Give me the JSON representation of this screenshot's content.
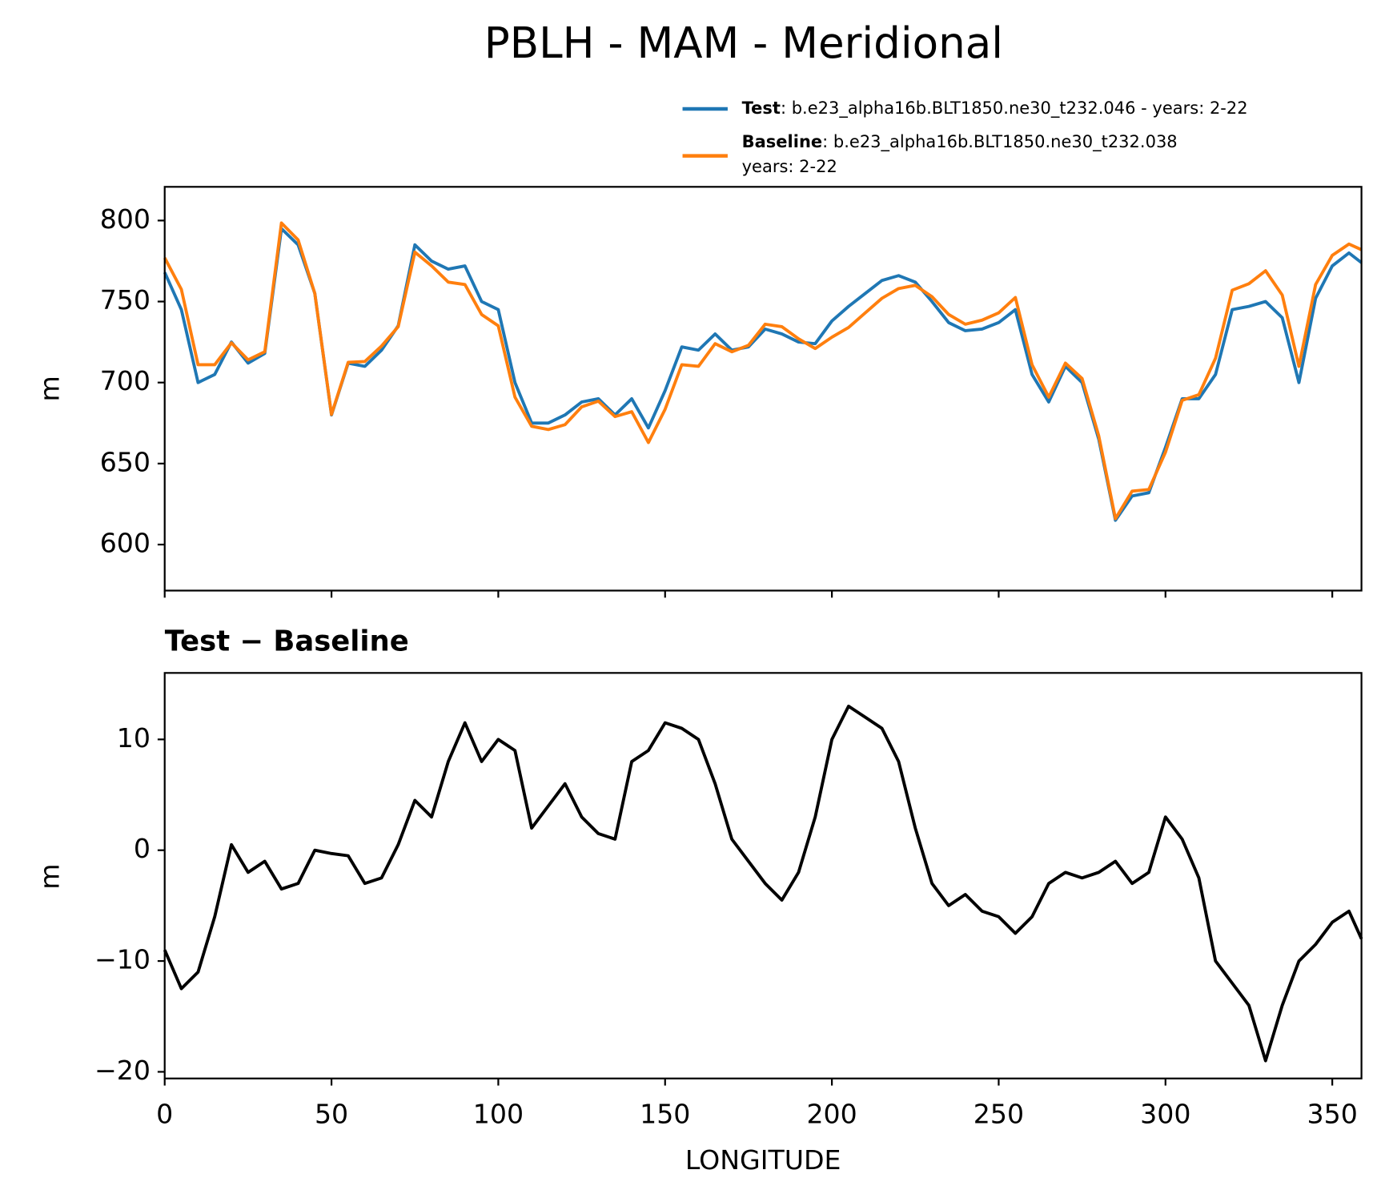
{
  "chart_data": [
    {
      "type": "line",
      "title": "PBLH - MAM - Meridional",
      "ylabel": "m",
      "x": [
        0,
        5,
        10,
        15,
        20,
        25,
        30,
        35,
        40,
        45,
        50,
        55,
        60,
        65,
        70,
        75,
        80,
        85,
        90,
        95,
        100,
        105,
        110,
        115,
        120,
        125,
        130,
        135,
        140,
        145,
        150,
        155,
        160,
        165,
        170,
        175,
        180,
        185,
        190,
        195,
        200,
        205,
        210,
        215,
        220,
        225,
        230,
        235,
        240,
        245,
        250,
        255,
        260,
        265,
        270,
        275,
        280,
        285,
        290,
        295,
        300,
        305,
        310,
        315,
        320,
        325,
        330,
        335,
        340,
        345,
        350,
        355,
        358.75
      ],
      "series": [
        {
          "name": "Test",
          "description": ": b.e23_alpha16b.BLT1850.ne30_t232.046 - years: 2-22",
          "color": "#1f77b4",
          "values": [
            768,
            745,
            700,
            705,
            725,
            712,
            718,
            795,
            785,
            755,
            680,
            712,
            710,
            720,
            735,
            785,
            775,
            770,
            772,
            750,
            745,
            700,
            675,
            675,
            680,
            688,
            690,
            680,
            690,
            672,
            695,
            722,
            720,
            730,
            720,
            722,
            733,
            730,
            725,
            724,
            738,
            747,
            755,
            763,
            766,
            762,
            750,
            737,
            732,
            733,
            737,
            745,
            705,
            688,
            710,
            700,
            665,
            615,
            630,
            632,
            660,
            690,
            690,
            705,
            745,
            747,
            750,
            740,
            700,
            752,
            772,
            780,
            774
          ]
        },
        {
          "name": "Baseline",
          "description": ": b.e23_alpha16b.BLT1850.ne30_t232.038",
          "description2": "years: 2-22",
          "color": "#ff7f0e",
          "values": [
            777,
            757.5,
            711,
            711,
            724.5,
            714,
            719,
            798.5,
            788,
            755,
            680.3,
            712.5,
            713,
            722.5,
            734.5,
            780.5,
            772,
            762,
            760.5,
            742,
            735,
            691,
            673,
            671,
            674,
            685,
            688.5,
            679,
            682,
            663,
            683.5,
            711,
            710,
            724,
            719,
            723,
            736,
            734.5,
            727,
            721,
            728,
            734,
            743,
            752,
            758,
            760,
            753,
            742,
            736,
            738.5,
            743,
            752.5,
            711,
            691,
            712,
            702.5,
            667,
            616,
            633,
            634,
            657,
            689,
            692.5,
            715,
            757,
            761,
            769,
            754,
            710,
            760.5,
            778.5,
            785.5,
            782
          ]
        }
      ],
      "xlim": [
        0,
        358.75
      ],
      "xticks": [
        0,
        50,
        100,
        150,
        200,
        250,
        300,
        350
      ],
      "ylim": [
        571.6,
        820.8
      ],
      "yticks": [
        600,
        650,
        700,
        750,
        800
      ]
    },
    {
      "type": "line",
      "title": "Test − Baseline",
      "xlabel": "LONGITUDE",
      "ylabel": "m",
      "x": [
        0,
        5,
        10,
        15,
        20,
        25,
        30,
        35,
        40,
        45,
        50,
        55,
        60,
        65,
        70,
        75,
        80,
        85,
        90,
        95,
        100,
        105,
        110,
        115,
        120,
        125,
        130,
        135,
        140,
        145,
        150,
        155,
        160,
        165,
        170,
        175,
        180,
        185,
        190,
        195,
        200,
        205,
        210,
        215,
        220,
        225,
        230,
        235,
        240,
        245,
        250,
        255,
        260,
        265,
        270,
        275,
        280,
        285,
        290,
        295,
        300,
        305,
        310,
        315,
        320,
        325,
        330,
        335,
        340,
        345,
        350,
        355,
        358.75
      ],
      "series": [
        {
          "color": "#000000",
          "values": [
            -9,
            -12.5,
            -11,
            -6,
            0.5,
            -2,
            -1,
            -3.5,
            -3,
            0,
            -0.3,
            -0.5,
            -3,
            -2.5,
            0.5,
            4.5,
            3,
            8,
            11.5,
            8,
            10,
            9,
            2,
            4,
            6,
            3,
            1.5,
            1,
            8,
            9,
            11.5,
            11,
            10,
            6,
            1,
            -1,
            -3,
            -4.5,
            -2,
            3,
            10,
            13,
            12,
            11,
            8,
            2,
            -3,
            -5,
            -4,
            -5.5,
            -6,
            -7.5,
            -6,
            -3,
            -2,
            -2.5,
            -2,
            -1,
            -3,
            -2,
            3,
            1,
            -2.5,
            -10,
            -12,
            -14,
            -19,
            -14,
            -10,
            -8.5,
            -6.5,
            -5.5,
            -8
          ]
        }
      ],
      "xlim": [
        0,
        358.75
      ],
      "xticks": [
        0,
        50,
        100,
        150,
        200,
        250,
        300,
        350
      ],
      "ylim": [
        -20.6,
        16
      ],
      "yticks": [
        {
          "value": -20,
          "label": "−20"
        },
        {
          "value": -10,
          "label": "−10"
        },
        0,
        10
      ]
    }
  ]
}
